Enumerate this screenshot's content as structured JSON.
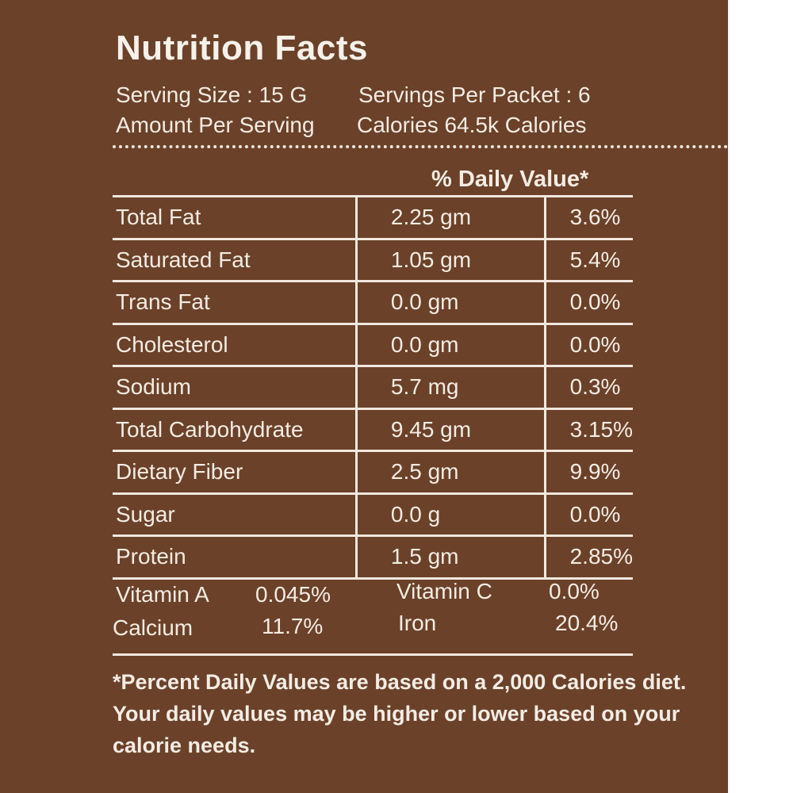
{
  "label": {
    "title": "Nutrition Facts",
    "serving_size": "Serving Size : 15 G",
    "servings_per_packet": "Servings Per Packet : 6",
    "amount_per_serving": "Amount Per Serving",
    "calories": "Calories 64.5k Calories",
    "daily_value_header": "% Daily Value*",
    "nutrients": [
      {
        "name": "Total Fat",
        "amount": "2.25 gm",
        "dv": "3.6%"
      },
      {
        "name": "Saturated Fat",
        "amount": "1.05 gm",
        "dv": "5.4%"
      },
      {
        "name": "Trans Fat",
        "amount": "0.0 gm",
        "dv": "0.0%"
      },
      {
        "name": "Cholesterol",
        "amount": "0.0 gm",
        "dv": "0.0%"
      },
      {
        "name": "Sodium",
        "amount": "5.7 mg",
        "dv": "0.3%"
      },
      {
        "name": "Total Carbohydrate",
        "amount": "9.45 gm",
        "dv": "3.15%"
      },
      {
        "name": "Dietary Fiber",
        "amount": "2.5 gm",
        "dv": "9.9%"
      },
      {
        "name": "Sugar",
        "amount": "0.0 g",
        "dv": "0.0%"
      },
      {
        "name": "Protein",
        "amount": "1.5 gm",
        "dv": "2.85%"
      }
    ],
    "vitamins": {
      "vitamin_a_label": "Vitamin A",
      "vitamin_a_value": "0.045%",
      "vitamin_c_label": "Vitamin C",
      "vitamin_c_value": "0.0%",
      "calcium_label": "Calcium",
      "calcium_value": "11.7%",
      "iron_label": "Iron",
      "iron_value": "20.4%"
    },
    "footnote": "*Percent Daily Values are based on a 2,000 Calories diet. Your daily values may be higher or lower based on your calorie needs."
  },
  "colors": {
    "background": "#6b4129",
    "text": "#f3ece4"
  }
}
